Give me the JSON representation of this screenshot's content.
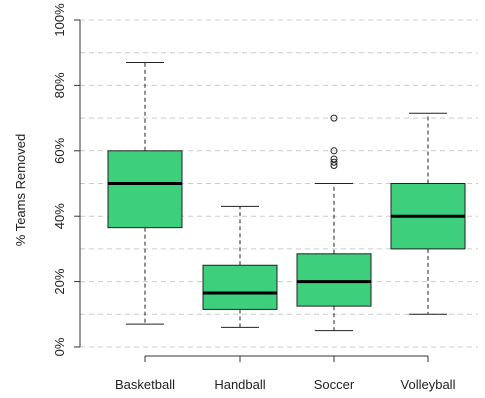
{
  "chart_data": {
    "type": "box",
    "title": "",
    "xlabel": "",
    "ylabel": "% Teams Removed",
    "ylim": [
      0,
      100
    ],
    "yticks": [
      0,
      20,
      40,
      60,
      80,
      100
    ],
    "ytick_labels": [
      "0%",
      "20%",
      "40%",
      "60%",
      "80%",
      "100%"
    ],
    "grid": true,
    "box_color": "#3ecf7c",
    "categories": [
      "Basketball",
      "Handball",
      "Soccer",
      "Volleyball"
    ],
    "boxes": [
      {
        "category": "Basketball",
        "whisker_low": 7,
        "q1": 36.5,
        "median": 50,
        "q3": 60,
        "whisker_high": 87,
        "outliers": []
      },
      {
        "category": "Handball",
        "whisker_low": 6,
        "q1": 11.5,
        "median": 16.5,
        "q3": 25,
        "whisker_high": 43,
        "outliers": []
      },
      {
        "category": "Soccer",
        "whisker_low": 5,
        "q1": 12.5,
        "median": 20,
        "q3": 28.5,
        "whisker_high": 50,
        "outliers": [
          55.5,
          56.5,
          57.5,
          60,
          70
        ]
      },
      {
        "category": "Volleyball",
        "whisker_low": 10,
        "q1": 30,
        "median": 40,
        "q3": 50,
        "whisker_high": 71.5,
        "outliers": []
      }
    ]
  }
}
